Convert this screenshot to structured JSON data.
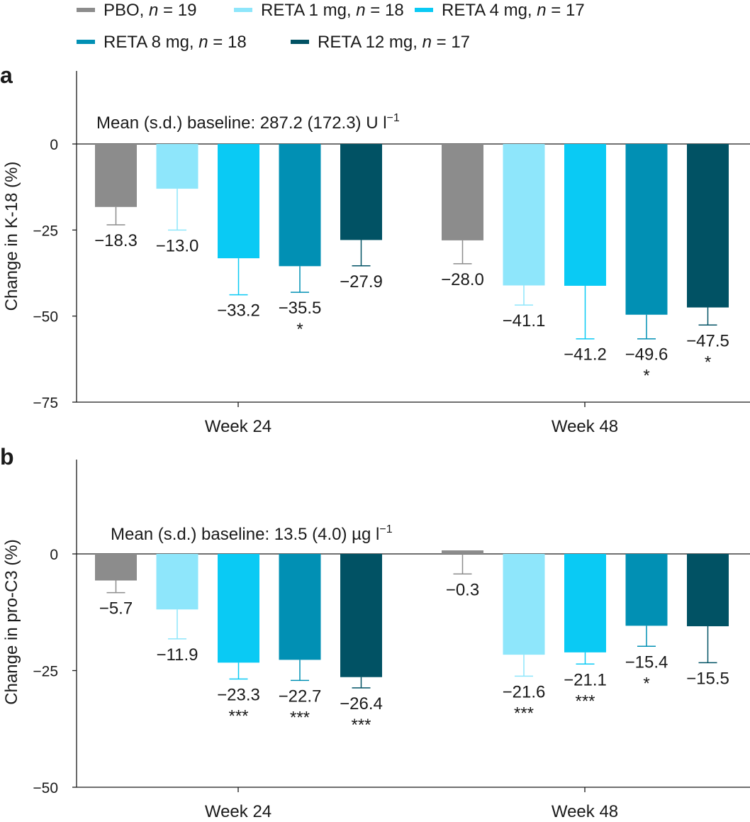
{
  "legend": [
    {
      "label": "PBO, ",
      "n_symbol": "n",
      "n_text": " = 19",
      "color": "#8c8c8c"
    },
    {
      "label": "RETA 1 mg, ",
      "n_symbol": "n",
      "n_text": " = 18",
      "color": "#8ee6fb"
    },
    {
      "label": "RETA 4 mg,  ",
      "n_symbol": "n",
      "n_text": " = 17",
      "color": "#0acaf4"
    },
    {
      "label": "RETA 8 mg, ",
      "n_symbol": "n",
      "n_text": " = 18",
      "color": "#0190b4"
    },
    {
      "label": "RETA 12 mg, ",
      "n_symbol": "n",
      "n_text": " = 17",
      "color": "#015264"
    }
  ],
  "chart_data": [
    {
      "type": "bar",
      "panel": "a",
      "ylabel": "Change in K-18 (%)",
      "ylim": [
        -75,
        20
      ],
      "yticks": [
        0,
        -25,
        -50,
        -75
      ],
      "yticklabels": [
        "0",
        "-25",
        "-50",
        "-75"
      ],
      "annotation": "Mean (s.d.) baseline: 287.2 (172.3) U l",
      "annotation_sup": "−1",
      "categories": [
        "Week 24",
        "Week 48"
      ],
      "series": [
        {
          "name": "PBO",
          "values": [
            -18.3,
            -28.0
          ],
          "err_end": [
            -23.5,
            -34.8
          ],
          "labels": [
            "−18.3",
            "−28.0"
          ],
          "sig": [
            "",
            ""
          ]
        },
        {
          "name": "RETA 1 mg",
          "values": [
            -13.0,
            -41.1
          ],
          "err_end": [
            -25.0,
            -46.8
          ],
          "labels": [
            "−13.0",
            "−41.1"
          ],
          "sig": [
            "",
            ""
          ]
        },
        {
          "name": "RETA 4 mg",
          "values": [
            -33.2,
            -41.2
          ],
          "err_end": [
            -43.8,
            -56.6
          ],
          "labels": [
            "−33.2",
            "−41.2"
          ],
          "sig": [
            "",
            ""
          ]
        },
        {
          "name": "RETA 8 mg",
          "values": [
            -35.5,
            -49.6
          ],
          "err_end": [
            -43.1,
            -56.6
          ],
          "labels": [
            "−35.5",
            "−49.6"
          ],
          "sig": [
            "*",
            "*"
          ]
        },
        {
          "name": "RETA 12 mg",
          "values": [
            -27.9,
            -47.5
          ],
          "err_end": [
            -35.4,
            -52.6
          ],
          "labels": [
            "−27.9",
            "−47.5"
          ],
          "sig": [
            "",
            "*"
          ]
        }
      ]
    },
    {
      "type": "bar",
      "panel": "b",
      "ylabel": "Change in pro-C3 (%)",
      "ylim": [
        -50,
        20
      ],
      "yticks": [
        0,
        -25,
        -50
      ],
      "yticklabels": [
        "0",
        "-25",
        "-50"
      ],
      "annotation": "Mean (s.d.) baseline: 13.5 (4.0) µg l",
      "annotation_sup": "−1",
      "categories": [
        "Week 24",
        "Week 48"
      ],
      "series": [
        {
          "name": "PBO",
          "values": [
            -5.7,
            -0.3
          ],
          "err_end": [
            -8.3,
            -4.3
          ],
          "labels": [
            "−5.7",
            "−0.3"
          ],
          "sig": [
            "",
            ""
          ]
        },
        {
          "name": "RETA 1 mg",
          "values": [
            -11.9,
            -21.6
          ],
          "err_end": [
            -18.2,
            -26.2
          ],
          "labels": [
            "−11.9",
            "−21.6"
          ],
          "sig": [
            "",
            "***"
          ]
        },
        {
          "name": "RETA 4 mg",
          "values": [
            -23.3,
            -21.1
          ],
          "err_end": [
            -26.8,
            -23.6
          ],
          "labels": [
            "−23.3",
            "−21.1"
          ],
          "sig": [
            "***",
            "***"
          ]
        },
        {
          "name": "RETA 8 mg",
          "values": [
            -22.7,
            -15.4
          ],
          "err_end": [
            -27.1,
            -19.8
          ],
          "labels": [
            "−22.7",
            "−15.4"
          ],
          "sig": [
            "***",
            "*"
          ]
        },
        {
          "name": "RETA 12 mg",
          "values": [
            -26.4,
            -15.5
          ],
          "err_end": [
            -28.7,
            -23.3
          ],
          "labels": [
            "−26.4",
            "−15.5"
          ],
          "sig": [
            "***",
            ""
          ]
        }
      ]
    }
  ]
}
